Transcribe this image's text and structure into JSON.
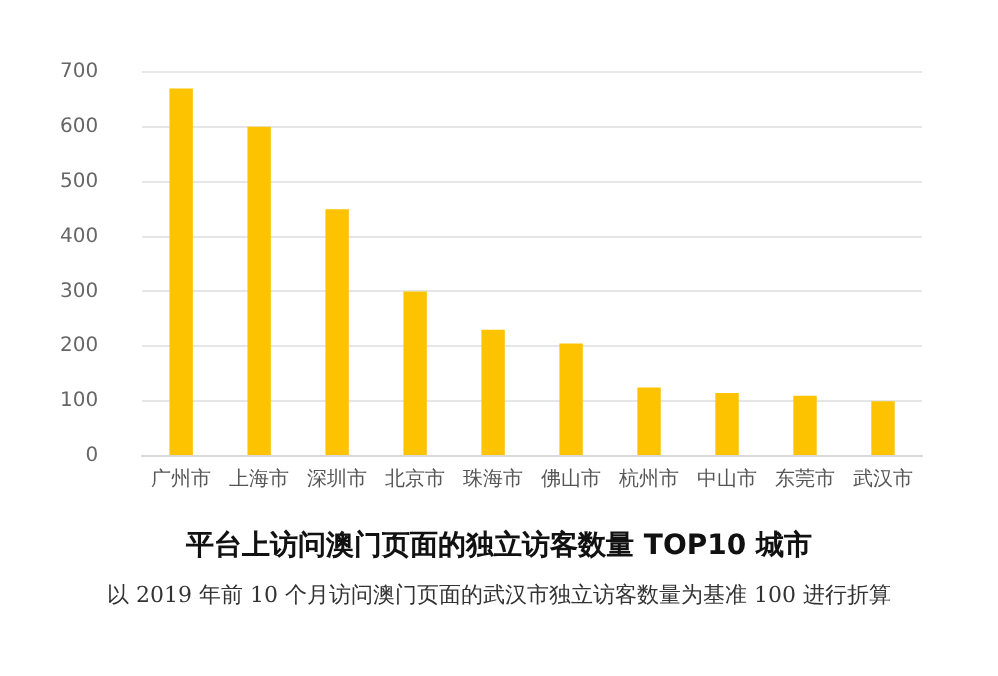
{
  "chart_data": {
    "type": "bar",
    "title": "平台上访问澳门页面的独立访客数量 TOP10 城市",
    "annotations": [
      "以 2019 年前 10 个月访问澳门页面的武汉市独立访客数量为基准 100 进行折算"
    ],
    "categories": [
      "广州市",
      "上海市",
      "深圳市",
      "北京市",
      "珠海市",
      "佛山市",
      "杭州市",
      "中山市",
      "东莞市",
      "武汉市"
    ],
    "values": [
      670,
      600,
      450,
      300,
      230,
      205,
      125,
      115,
      110,
      100
    ],
    "color": "#fdc300",
    "ylim": [
      0,
      700
    ],
    "yticks": [
      0,
      100,
      200,
      300,
      400,
      500,
      600,
      700
    ],
    "grid": "y",
    "legend": false
  }
}
